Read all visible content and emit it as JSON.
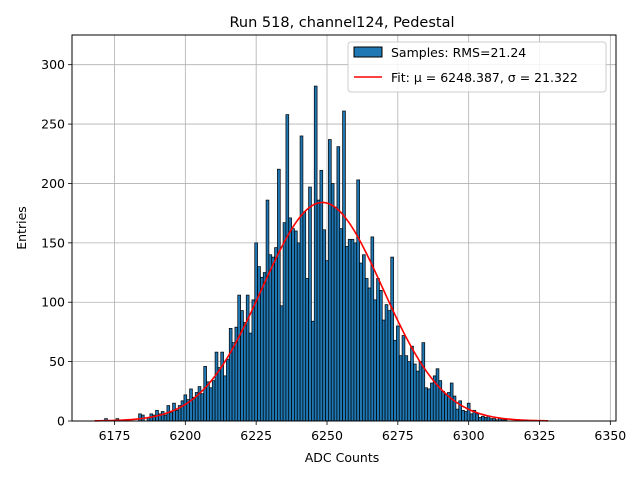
{
  "chart_data": {
    "type": "bar",
    "title": "Run 518, channel124, Pedestal",
    "xlabel": "ADC Counts",
    "ylabel": "Entries",
    "xlim": [
      6160,
      6352
    ],
    "ylim": [
      0,
      325
    ],
    "xticks": [
      6175,
      6200,
      6225,
      6250,
      6275,
      6300,
      6325,
      6350
    ],
    "yticks": [
      0,
      50,
      100,
      150,
      200,
      250,
      300
    ],
    "grid": true,
    "legend_position": "top-right",
    "bin_width": 1,
    "colors": {
      "bar_fill": "#1f77b4",
      "bar_edge": "#000000",
      "fit_line": "#ff0000"
    },
    "series": [
      {
        "name": "Samples: RMS=21.24",
        "kind": "histogram",
        "x": [
          6172,
          6176,
          6184,
          6185,
          6187,
          6188,
          6189,
          6190,
          6191,
          6192,
          6193,
          6194,
          6195,
          6196,
          6197,
          6198,
          6199,
          6200,
          6201,
          6202,
          6203,
          6204,
          6205,
          6206,
          6207,
          6208,
          6209,
          6210,
          6211,
          6212,
          6213,
          6214,
          6215,
          6216,
          6217,
          6218,
          6219,
          6220,
          6221,
          6222,
          6223,
          6224,
          6225,
          6226,
          6227,
          6228,
          6229,
          6230,
          6231,
          6232,
          6233,
          6234,
          6235,
          6236,
          6237,
          6238,
          6239,
          6240,
          6241,
          6242,
          6243,
          6244,
          6245,
          6246,
          6247,
          6248,
          6249,
          6250,
          6251,
          6252,
          6253,
          6254,
          6255,
          6256,
          6257,
          6258,
          6259,
          6260,
          6261,
          6262,
          6263,
          6264,
          6265,
          6266,
          6267,
          6268,
          6269,
          6270,
          6271,
          6272,
          6273,
          6274,
          6275,
          6276,
          6277,
          6278,
          6279,
          6280,
          6281,
          6282,
          6283,
          6284,
          6285,
          6286,
          6287,
          6288,
          6289,
          6290,
          6291,
          6292,
          6293,
          6294,
          6295,
          6296,
          6297,
          6298,
          6299,
          6300,
          6301,
          6302,
          6303,
          6304,
          6305,
          6306,
          6307,
          6308,
          6309,
          6310,
          6311,
          6312,
          6313
        ],
        "values": [
          2,
          2,
          6,
          5,
          3,
          6,
          5,
          9,
          6,
          8,
          5,
          13,
          7,
          15,
          9,
          13,
          17,
          22,
          18,
          27,
          20,
          24,
          29,
          23,
          46,
          33,
          28,
          34,
          58,
          45,
          58,
          38,
          52,
          78,
          66,
          79,
          106,
          93,
          83,
          106,
          74,
          102,
          150,
          130,
          121,
          125,
          186,
          140,
          138,
          146,
          212,
          97,
          167,
          258,
          171,
          162,
          160,
          150,
          240,
          176,
          120,
          197,
          84,
          282,
          186,
          211,
          161,
          135,
          237,
          200,
          180,
          231,
          162,
          261,
          147,
          153,
          153,
          150,
          203,
          133,
          140,
          120,
          112,
          155,
          102,
          120,
          110,
          85,
          98,
          93,
          138,
          68,
          80,
          55,
          72,
          55,
          50,
          63,
          48,
          42,
          50,
          66,
          28,
          27,
          32,
          38,
          44,
          34,
          25,
          22,
          24,
          32,
          21,
          10,
          17,
          9,
          8,
          15,
          6,
          9,
          6,
          3,
          4,
          3,
          4,
          2,
          2,
          1,
          2,
          1,
          1
        ]
      },
      {
        "name": "Fit: μ = 6248.387, σ = 21.322",
        "kind": "gaussian",
        "mu": 6248.387,
        "sigma": 21.322,
        "amplitude": 184,
        "x_range": [
          6168,
          6328
        ]
      }
    ]
  }
}
